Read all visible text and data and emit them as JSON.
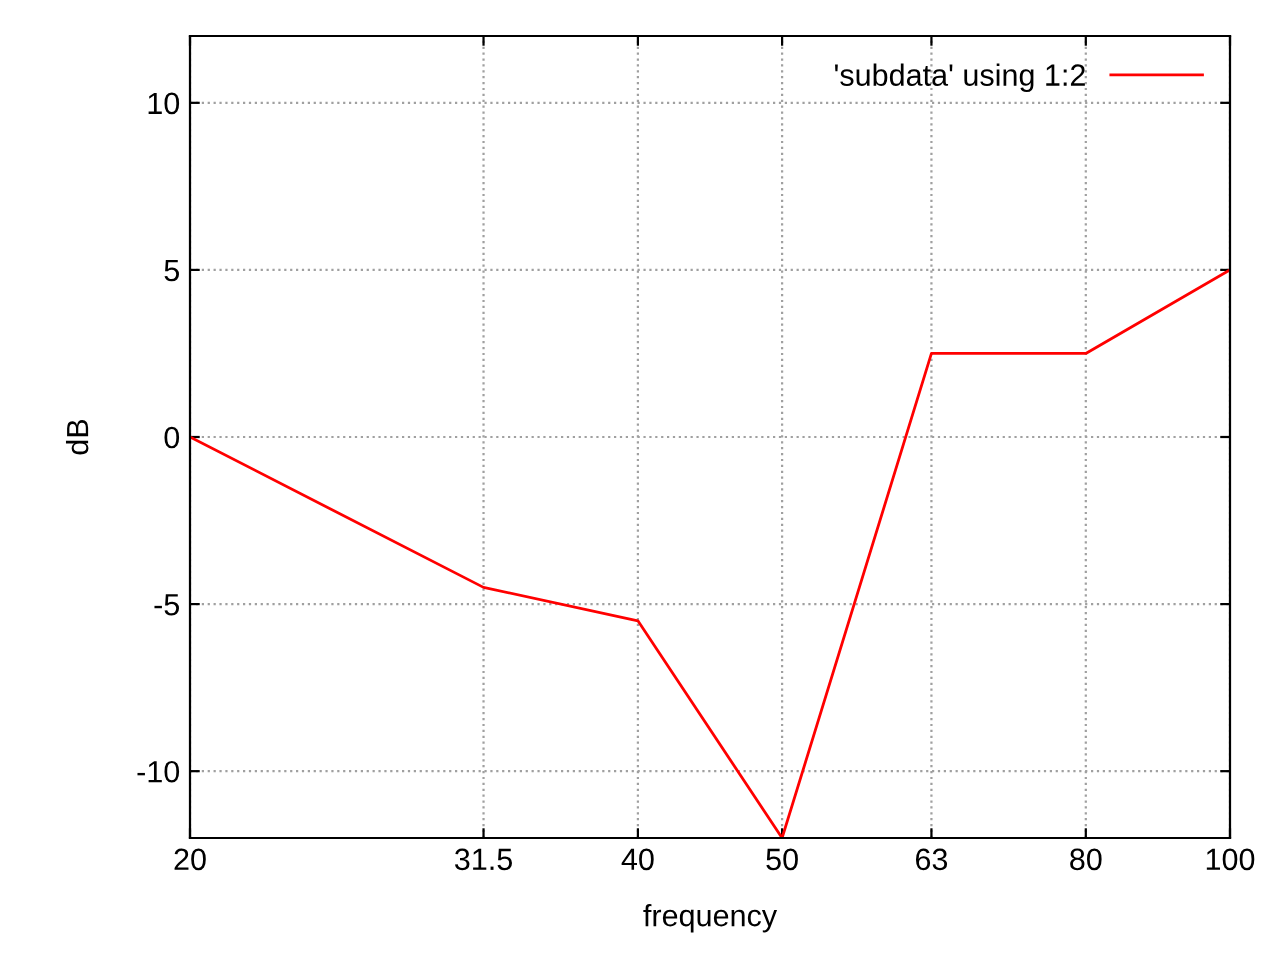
{
  "chart_data": {
    "type": "line",
    "xlabel": "frequency",
    "ylabel": "dB",
    "log": "x",
    "x": [
      20,
      31.5,
      40,
      50,
      63,
      80,
      100
    ],
    "series": [
      {
        "name": "'subdata' using 1:2",
        "color": "#ff0000",
        "values": [
          0,
          -4.5,
          -5.5,
          -12,
          2.5,
          2.5,
          5
        ]
      }
    ],
    "xlim": [
      20,
      100
    ],
    "xticks": [
      20,
      31.5,
      40,
      50,
      63,
      80,
      100
    ],
    "ylim": [
      -12,
      12
    ],
    "yticks": [
      -10,
      -5,
      0,
      5,
      10
    ],
    "grid": true,
    "legend": "top right",
    "marker": "none",
    "line_style": "solid"
  }
}
